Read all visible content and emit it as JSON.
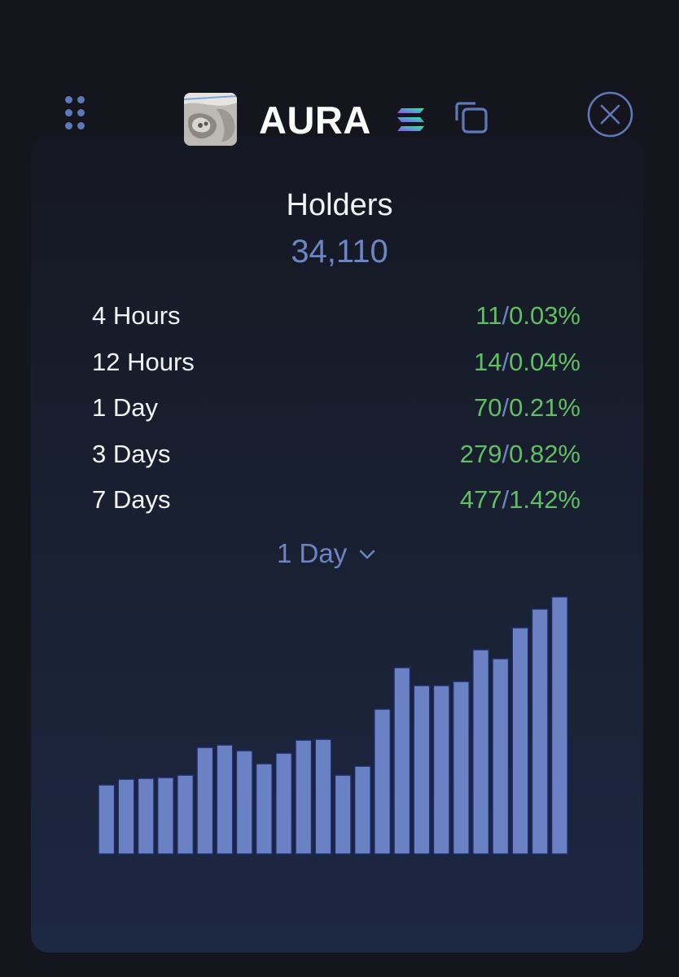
{
  "token": {
    "name": "AURA",
    "avatar_icon": "token-avatar-image",
    "chain_icon": "solana-icon"
  },
  "holders": {
    "title": "Holders",
    "count": "34,110"
  },
  "stats": [
    {
      "label": "4 Hours",
      "change": "11",
      "percent": "0.03%"
    },
    {
      "label": "12 Hours",
      "change": "14",
      "percent": "0.04%"
    },
    {
      "label": "1 Day",
      "change": "70",
      "percent": "0.21%"
    },
    {
      "label": "3 Days",
      "change": "279",
      "percent": "0.82%"
    },
    {
      "label": "7 Days",
      "change": "477",
      "percent": "1.42%"
    }
  ],
  "period_select": {
    "selected": "1 Day"
  },
  "colors": {
    "accent": "#6d85c4",
    "positive": "#5fbf62",
    "bar": "#6a82c3",
    "text": "#f2f3f6"
  },
  "chart_data": {
    "type": "bar",
    "title": "",
    "xlabel": "",
    "ylabel": "",
    "grid": false,
    "values": [
      85,
      92,
      93,
      94,
      97,
      131,
      134,
      127,
      111,
      124,
      140,
      141,
      97,
      108,
      178,
      229,
      207,
      207,
      212,
      251,
      240,
      278,
      301,
      316
    ],
    "ylim": [
      0,
      316
    ]
  }
}
